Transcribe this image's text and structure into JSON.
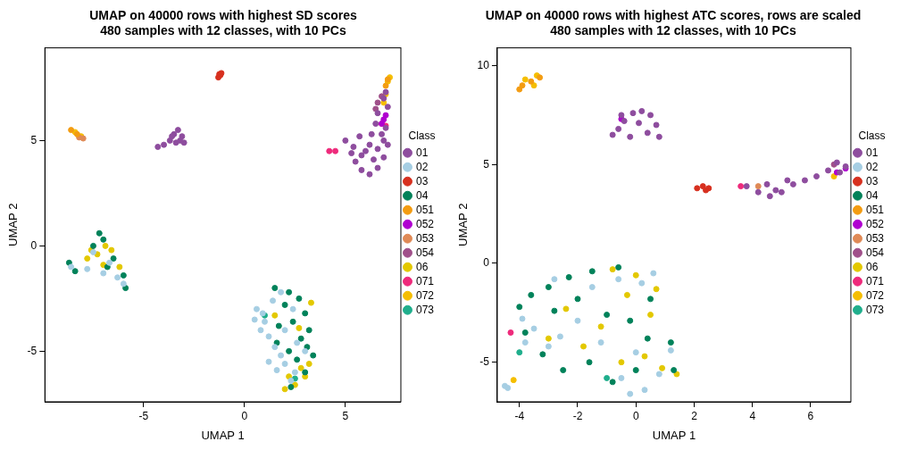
{
  "chart_data": [
    {
      "type": "scatter",
      "title": [
        "UMAP on 40000 rows with highest SD scores",
        "480 samples with 12 classes, with 10 PCs"
      ],
      "x_label": "UMAP 1",
      "y_label": "UMAP 2",
      "xlim": [
        -9.9,
        7.75
      ],
      "ylim": [
        -7.4,
        9.4
      ],
      "xticks": [
        -5,
        0,
        5
      ],
      "yticks": [
        -5,
        0,
        5
      ],
      "grid": false,
      "legend": "right",
      "legend_title": "Class",
      "series": [
        {
          "name": "01",
          "color": "#8E4D9E",
          "points": [
            [
              -4.3,
              4.7
            ],
            [
              -4.0,
              4.8
            ],
            [
              -3.7,
              5.0
            ],
            [
              -3.5,
              5.3
            ],
            [
              -3.3,
              5.5
            ],
            [
              -3.1,
              5.2
            ],
            [
              -3.0,
              4.9
            ],
            [
              -3.4,
              4.9
            ],
            [
              -3.6,
              5.2
            ],
            [
              -3.2,
              5.0
            ],
            [
              5.0,
              5.0
            ],
            [
              5.3,
              4.4
            ],
            [
              5.5,
              4.0
            ],
            [
              5.8,
              3.6
            ],
            [
              6.2,
              3.4
            ],
            [
              6.6,
              3.7
            ],
            [
              6.9,
              4.2
            ],
            [
              7.1,
              4.8
            ],
            [
              6.8,
              5.3
            ],
            [
              6.3,
              5.3
            ],
            [
              5.7,
              5.2
            ],
            [
              5.4,
              4.7
            ],
            [
              6.0,
              4.5
            ],
            [
              6.4,
              4.1
            ],
            [
              6.9,
              5.0
            ],
            [
              7.0,
              5.6
            ],
            [
              6.5,
              5.8
            ],
            [
              5.8,
              4.3
            ],
            [
              6.2,
              4.8
            ],
            [
              6.6,
              4.6
            ],
            [
              7.1,
              6.6
            ],
            [
              6.9,
              7.0
            ],
            [
              7.0,
              7.3
            ],
            [
              6.6,
              6.3
            ]
          ]
        },
        {
          "name": "02",
          "color": "#A6CEE3",
          "points": [
            [
              0.6,
              -3.0
            ],
            [
              0.5,
              -3.5
            ],
            [
              1.0,
              -3.6
            ],
            [
              0.8,
              -4.0
            ],
            [
              1.2,
              -4.3
            ],
            [
              1.5,
              -4.8
            ],
            [
              1.8,
              -5.2
            ],
            [
              2.0,
              -5.6
            ],
            [
              1.6,
              -5.9
            ],
            [
              2.3,
              -6.4
            ],
            [
              1.4,
              -2.6
            ],
            [
              1.8,
              -2.2
            ],
            [
              2.4,
              -3.0
            ],
            [
              2.0,
              -4.0
            ],
            [
              2.6,
              -4.6
            ],
            [
              1.2,
              -5.5
            ],
            [
              2.5,
              -6.0
            ],
            [
              3.0,
              -5.0
            ],
            [
              0.9,
              -3.2
            ],
            [
              -8.6,
              -1.0
            ],
            [
              -7.8,
              -1.1
            ],
            [
              -7.0,
              -1.3
            ],
            [
              -6.3,
              -1.5
            ],
            [
              -6.0,
              -1.8
            ],
            [
              -7.5,
              -0.3
            ],
            [
              -6.7,
              -0.8
            ]
          ]
        },
        {
          "name": "03",
          "color": "#D7301F",
          "points": [
            [
              -1.3,
              8.0
            ],
            [
              -1.2,
              8.1
            ],
            [
              -1.15,
              8.2
            ],
            [
              -1.25,
              8.15
            ]
          ]
        },
        {
          "name": "04",
          "color": "#00825A",
          "points": [
            [
              1.5,
              -2.0
            ],
            [
              2.2,
              -2.2
            ],
            [
              2.7,
              -2.5
            ],
            [
              3.0,
              -3.2
            ],
            [
              2.4,
              -3.6
            ],
            [
              3.2,
              -4.0
            ],
            [
              2.8,
              -4.4
            ],
            [
              3.4,
              -5.2
            ],
            [
              2.2,
              -5.0
            ],
            [
              1.6,
              -4.6
            ],
            [
              3.0,
              -6.0
            ],
            [
              2.0,
              -2.8
            ],
            [
              1.7,
              -3.8
            ],
            [
              2.6,
              -5.4
            ],
            [
              3.1,
              -4.8
            ],
            [
              2.3,
              -6.7
            ],
            [
              -8.7,
              -0.8
            ],
            [
              -8.4,
              -1.2
            ],
            [
              -7.2,
              0.6
            ],
            [
              -7.0,
              0.3
            ],
            [
              -6.5,
              -0.6
            ],
            [
              -6.0,
              -1.4
            ],
            [
              -5.9,
              -2.0
            ],
            [
              -7.5,
              0.0
            ],
            [
              -6.8,
              -1.0
            ]
          ]
        },
        {
          "name": "051",
          "color": "#F39C12",
          "points": [
            [
              -8.6,
              5.5
            ],
            [
              -8.3,
              5.3
            ],
            [
              7.1,
              7.9
            ],
            [
              7.0,
              7.6
            ]
          ]
        },
        {
          "name": "052",
          "color": "#B000D0",
          "points": [
            [
              6.8,
              5.8
            ],
            [
              7.0,
              6.2
            ],
            [
              6.9,
              6.0
            ]
          ]
        },
        {
          "name": "053",
          "color": "#E08A56",
          "points": [
            [
              -8.2,
              5.15
            ],
            [
              -8.0,
              5.1
            ]
          ]
        },
        {
          "name": "054",
          "color": "#A0508A",
          "points": [
            [
              6.6,
              6.8
            ],
            [
              6.8,
              7.1
            ],
            [
              6.5,
              6.5
            ]
          ]
        },
        {
          "name": "06",
          "color": "#E3C800",
          "points": [
            [
              2.0,
              -6.8
            ],
            [
              2.5,
              -6.6
            ],
            [
              3.0,
              -6.2
            ],
            [
              2.8,
              -5.8
            ],
            [
              3.2,
              -5.6
            ],
            [
              2.2,
              -6.2
            ],
            [
              1.5,
              -3.3
            ],
            [
              2.7,
              -3.9
            ],
            [
              3.3,
              -2.7
            ],
            [
              -7.6,
              -0.2
            ],
            [
              -7.3,
              -0.4
            ],
            [
              -7.0,
              -0.9
            ],
            [
              -6.6,
              -0.2
            ],
            [
              -6.2,
              -1.0
            ],
            [
              -7.8,
              -0.6
            ],
            [
              -6.9,
              0.0
            ]
          ]
        },
        {
          "name": "071",
          "color": "#EE2A7B",
          "points": [
            [
              4.2,
              4.5
            ],
            [
              4.5,
              4.5
            ],
            [
              6.8,
              5.8
            ],
            [
              7.0,
              5.7
            ]
          ]
        },
        {
          "name": "072",
          "color": "#F5BE00",
          "points": [
            [
              -8.4,
              5.4
            ],
            [
              -8.1,
              5.2
            ],
            [
              7.1,
              7.8
            ],
            [
              7.2,
              8.0
            ],
            [
              7.0,
              7.2
            ],
            [
              6.9,
              6.8
            ]
          ]
        },
        {
          "name": "073",
          "color": "#1FAE8C",
          "points": [
            [
              1.0,
              -3.3
            ],
            [
              2.5,
              -6.3
            ]
          ]
        }
      ]
    },
    {
      "type": "scatter",
      "title": [
        "UMAP on 40000 rows with highest ATC scores, rows are scaled",
        "480 samples with 12 classes, with 10 PCs"
      ],
      "x_label": "UMAP 1",
      "y_label": "UMAP 2",
      "xlim": [
        -4.76,
        7.38
      ],
      "ylim": [
        -7.0,
        10.9
      ],
      "xticks": [
        -4,
        -2,
        0,
        2,
        4,
        6
      ],
      "yticks": [
        -5,
        0,
        5,
        10
      ],
      "grid": false,
      "legend": "right",
      "legend_title": "Class",
      "series": [
        {
          "name": "01",
          "color": "#8E4D9E",
          "points": [
            [
              -0.8,
              6.5
            ],
            [
              -0.6,
              6.8
            ],
            [
              -0.4,
              7.2
            ],
            [
              -0.1,
              7.6
            ],
            [
              0.2,
              7.7
            ],
            [
              0.5,
              7.5
            ],
            [
              0.7,
              7.0
            ],
            [
              0.4,
              6.6
            ],
            [
              0.8,
              6.4
            ],
            [
              -0.2,
              6.4
            ],
            [
              0.1,
              7.1
            ],
            [
              -0.5,
              7.5
            ],
            [
              3.8,
              3.9
            ],
            [
              4.2,
              3.6
            ],
            [
              4.6,
              3.4
            ],
            [
              5.0,
              3.6
            ],
            [
              5.4,
              4.0
            ],
            [
              5.8,
              4.2
            ],
            [
              6.2,
              4.4
            ],
            [
              6.6,
              4.7
            ],
            [
              6.9,
              5.1
            ],
            [
              7.2,
              4.9
            ],
            [
              4.5,
              4.0
            ],
            [
              5.2,
              4.2
            ],
            [
              4.8,
              3.7
            ],
            [
              7.0,
              4.6
            ]
          ]
        },
        {
          "name": "02",
          "color": "#A6CEE3",
          "points": [
            [
              -4.5,
              -6.2
            ],
            [
              -4.4,
              -6.3
            ],
            [
              -3.8,
              -4.0
            ],
            [
              -3.5,
              -3.3
            ],
            [
              -3.0,
              -4.2
            ],
            [
              -2.6,
              -3.7
            ],
            [
              -2.0,
              -2.9
            ],
            [
              -1.5,
              -1.2
            ],
            [
              -0.6,
              -0.8
            ],
            [
              0.2,
              -1.0
            ],
            [
              0.6,
              -0.5
            ],
            [
              0.0,
              -4.5
            ],
            [
              -0.5,
              -5.8
            ],
            [
              0.3,
              -6.4
            ],
            [
              0.8,
              -5.6
            ],
            [
              -1.2,
              -4.0
            ],
            [
              -2.8,
              -0.8
            ],
            [
              -3.9,
              -2.8
            ],
            [
              1.2,
              -4.4
            ],
            [
              -0.2,
              -6.6
            ]
          ]
        },
        {
          "name": "03",
          "color": "#D7301F",
          "points": [
            [
              2.1,
              3.8
            ],
            [
              2.3,
              3.9
            ],
            [
              2.5,
              3.8
            ],
            [
              2.4,
              3.7
            ]
          ]
        },
        {
          "name": "04",
          "color": "#00825A",
          "points": [
            [
              -4.0,
              -2.2
            ],
            [
              -3.6,
              -1.6
            ],
            [
              -3.0,
              -1.2
            ],
            [
              -2.3,
              -0.7
            ],
            [
              -1.5,
              -0.4
            ],
            [
              -0.6,
              -0.2
            ],
            [
              -3.8,
              -3.5
            ],
            [
              -2.8,
              -2.4
            ],
            [
              -2.0,
              -1.8
            ],
            [
              -1.0,
              -2.6
            ],
            [
              -0.2,
              -2.9
            ],
            [
              0.4,
              -3.8
            ],
            [
              1.2,
              -4.0
            ],
            [
              1.3,
              -5.4
            ],
            [
              0.0,
              -5.4
            ],
            [
              -0.8,
              -6.0
            ],
            [
              -1.6,
              -5.0
            ],
            [
              -2.5,
              -5.4
            ],
            [
              0.5,
              -1.8
            ],
            [
              -3.2,
              -4.6
            ]
          ]
        },
        {
          "name": "051",
          "color": "#F39C12",
          "points": [
            [
              -3.9,
              9.0
            ],
            [
              -3.6,
              9.2
            ],
            [
              -3.3,
              9.4
            ],
            [
              -4.0,
              8.8
            ]
          ]
        },
        {
          "name": "052",
          "color": "#B000D0",
          "points": [
            [
              -0.5,
              7.3
            ],
            [
              7.2,
              4.8
            ],
            [
              6.9,
              4.6
            ]
          ]
        },
        {
          "name": "053",
          "color": "#E08A56",
          "points": [
            [
              4.2,
              3.9
            ]
          ]
        },
        {
          "name": "054",
          "color": "#A0508A",
          "points": [
            [
              6.8,
              5.0
            ]
          ]
        },
        {
          "name": "06",
          "color": "#E3C800",
          "points": [
            [
              -0.8,
              -0.3
            ],
            [
              0.0,
              -0.6
            ],
            [
              0.7,
              -1.3
            ],
            [
              -0.3,
              -1.6
            ],
            [
              -2.4,
              -2.3
            ],
            [
              -1.2,
              -3.2
            ],
            [
              0.3,
              -4.7
            ],
            [
              0.9,
              -5.3
            ],
            [
              1.4,
              -5.6
            ],
            [
              -0.5,
              -5.0
            ],
            [
              -1.8,
              -4.2
            ],
            [
              -3.0,
              -3.8
            ],
            [
              0.5,
              -2.6
            ]
          ]
        },
        {
          "name": "071",
          "color": "#EE2A7B",
          "points": [
            [
              3.6,
              3.9
            ],
            [
              -4.3,
              -3.5
            ]
          ]
        },
        {
          "name": "072",
          "color": "#F5BE00",
          "points": [
            [
              -3.8,
              9.3
            ],
            [
              -3.5,
              9.0
            ],
            [
              -4.2,
              -5.9
            ],
            [
              6.8,
              4.4
            ],
            [
              -3.4,
              9.5
            ]
          ]
        },
        {
          "name": "073",
          "color": "#1FAE8C",
          "points": [
            [
              -4.0,
              -4.5
            ],
            [
              -1.0,
              -5.8
            ]
          ]
        }
      ]
    }
  ]
}
